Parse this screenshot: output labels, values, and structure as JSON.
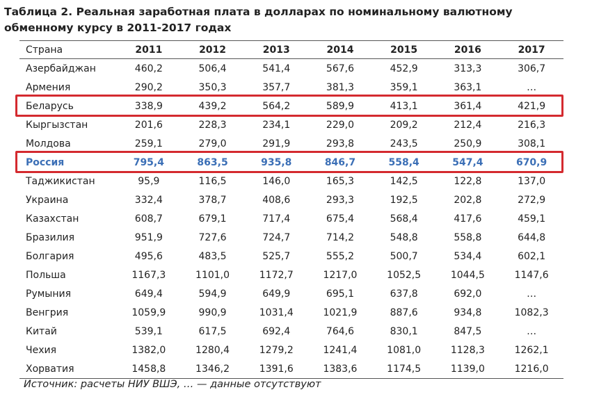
{
  "title": "Таблица 2. Реальная заработная плата в долларах по номинальному валютному обменному курсу в 2011-2017 годах",
  "table": {
    "header": [
      "Страна",
      "2011",
      "2012",
      "2013",
      "2014",
      "2015",
      "2016",
      "2017"
    ],
    "rows": [
      [
        "Азербайджан",
        "460,2",
        "506,4",
        "541,4",
        "567,6",
        "452,9",
        "313,3",
        "306,7"
      ],
      [
        "Армения",
        "290,2",
        "350,3",
        "357,7",
        "381,3",
        "359,1",
        "363,1",
        "…"
      ],
      [
        "Беларусь",
        "338,9",
        "439,2",
        "564,2",
        "589,9",
        "413,1",
        "361,4",
        "421,9"
      ],
      [
        "Кыргызстан",
        "201,6",
        "228,3",
        "234,1",
        "229,0",
        "209,2",
        "212,4",
        "216,3"
      ],
      [
        "Молдова",
        "259,1",
        "279,0",
        "291,9",
        "293,8",
        "243,5",
        "250,9",
        "308,1"
      ],
      [
        "Россия",
        "795,4",
        "863,5",
        "935,8",
        "846,7",
        "558,4",
        "547,4",
        "670,9"
      ],
      [
        "Таджикистан",
        "95,9",
        "116,5",
        "146,0",
        "165,3",
        "142,5",
        "122,8",
        "137,0"
      ],
      [
        "Украина",
        "332,4",
        "378,7",
        "408,6",
        "293,3",
        "192,5",
        "202,8",
        "272,9"
      ],
      [
        "Казахстан",
        "608,7",
        "679,1",
        "717,4",
        "675,4",
        "568,4",
        "417,6",
        "459,1"
      ],
      [
        "Бразилия",
        "951,9",
        "727,6",
        "724,7",
        "714,2",
        "548,8",
        "558,8",
        "644,8"
      ],
      [
        "Болгария",
        "495,6",
        "483,5",
        "525,7",
        "555,2",
        "500,7",
        "534,4",
        "602,1"
      ],
      [
        "Польша",
        "1167,3",
        "1101,0",
        "1172,7",
        "1217,0",
        "1052,5",
        "1044,5",
        "1147,6"
      ],
      [
        "Румыния",
        "649,4",
        "594,9",
        "649,9",
        "695,1",
        "637,8",
        "692,0",
        "…"
      ],
      [
        "Венгрия",
        "1059,9",
        "990,9",
        "1031,4",
        "1021,9",
        "887,6",
        "934,8",
        "1082,3"
      ],
      [
        "Китай",
        "539,1",
        "617,5",
        "692,4",
        "764,6",
        "830,1",
        "847,5",
        "…"
      ],
      [
        "Чехия",
        "1382,0",
        "1280,4",
        "1279,2",
        "1241,4",
        "1081,0",
        "1128,3",
        "1262,1"
      ],
      [
        "Хорватия",
        "1458,8",
        "1346,2",
        "1391,6",
        "1383,6",
        "1174,5",
        "1139,0",
        "1216,0"
      ]
    ]
  },
  "footer": "Источник: расчеты НИУ ВШЭ, … — данные отсутствуют"
}
